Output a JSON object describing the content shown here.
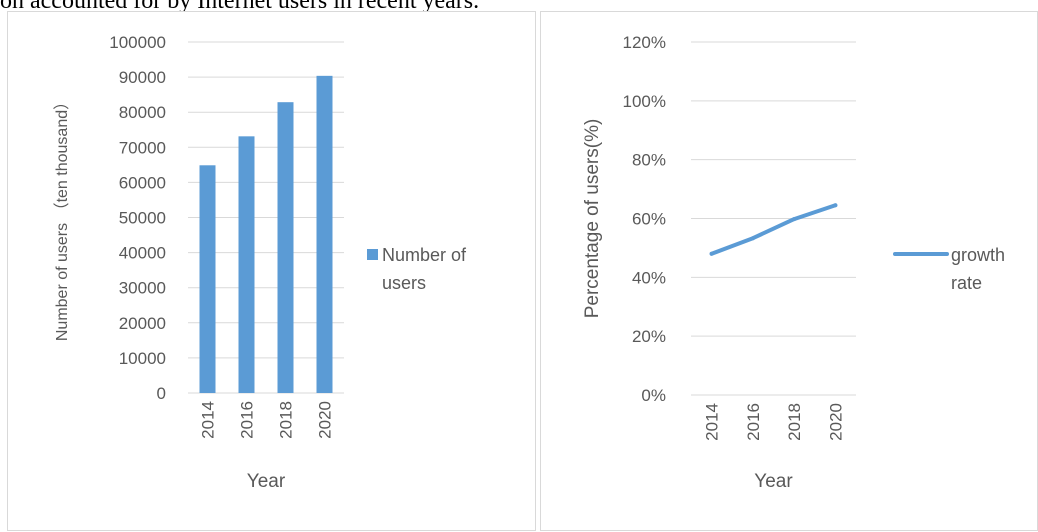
{
  "caption": "on accounted for by Internet users in recent years.",
  "chart_data": [
    {
      "type": "bar",
      "categories": [
        "2014",
        "2016",
        "2018",
        "2020"
      ],
      "series": [
        {
          "name": "Number of users",
          "values": [
            64875,
            73125,
            82851,
            90359
          ]
        }
      ],
      "xlabel": "Year",
      "ylabel": "Number of users （ten thousand）",
      "ylim": [
        0,
        100000
      ],
      "yticks": [
        "0",
        "10000",
        "20000",
        "30000",
        "40000",
        "50000",
        "60000",
        "70000",
        "80000",
        "90000",
        "100000"
      ],
      "legend": {
        "position": "right",
        "lines": [
          "Number of",
          "users"
        ]
      },
      "grid": true,
      "color": "#5b9bd5"
    },
    {
      "type": "line",
      "categories": [
        "2014",
        "2016",
        "2018",
        "2020"
      ],
      "series": [
        {
          "name": "growth rate",
          "values": [
            0.48,
            0.533,
            0.598,
            0.645
          ]
        }
      ],
      "xlabel": "Year",
      "ylabel": "Percentage of users(%)",
      "ylim": [
        0,
        1.2
      ],
      "yticks": [
        "0%",
        "20%",
        "40%",
        "60%",
        "80%",
        "100%",
        "120%"
      ],
      "legend": {
        "position": "right",
        "lines": [
          "growth",
          "rate"
        ]
      },
      "grid": true,
      "color": "#5b9bd5"
    }
  ]
}
